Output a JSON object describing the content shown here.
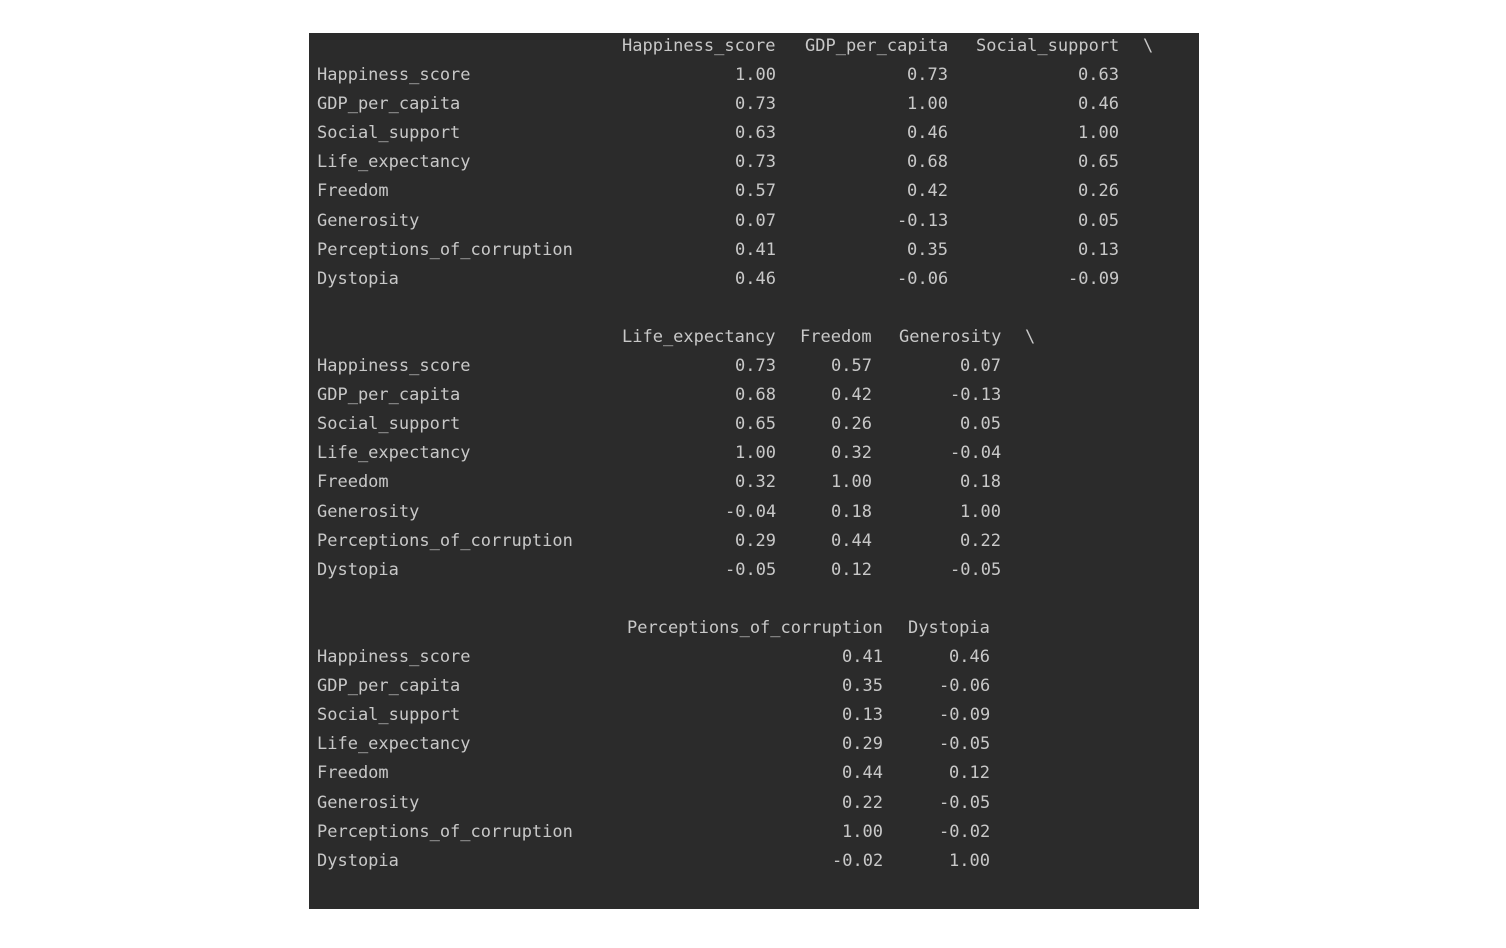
{
  "tables": [
    {
      "columns": [
        "Happiness_score",
        "GDP_per_capita",
        "Social_support"
      ],
      "continuation": "\\",
      "rows": [
        {
          "label": "Happiness_score",
          "values": [
            "1.00",
            "0.73",
            "0.63"
          ]
        },
        {
          "label": "GDP_per_capita",
          "values": [
            "0.73",
            "1.00",
            "0.46"
          ]
        },
        {
          "label": "Social_support",
          "values": [
            "0.63",
            "0.46",
            "1.00"
          ]
        },
        {
          "label": "Life_expectancy",
          "values": [
            "0.73",
            "0.68",
            "0.65"
          ]
        },
        {
          "label": "Freedom",
          "values": [
            "0.57",
            "0.42",
            "0.26"
          ]
        },
        {
          "label": "Generosity",
          "values": [
            "0.07",
            "-0.13",
            "0.05"
          ]
        },
        {
          "label": "Perceptions_of_corruption",
          "values": [
            "0.41",
            "0.35",
            "0.13"
          ]
        },
        {
          "label": "Dystopia",
          "values": [
            "0.46",
            "-0.06",
            "-0.09"
          ]
        }
      ]
    },
    {
      "columns": [
        "Life_expectancy",
        "Freedom",
        "Generosity"
      ],
      "continuation": "\\",
      "rows": [
        {
          "label": "Happiness_score",
          "values": [
            "0.73",
            "0.57",
            "0.07"
          ]
        },
        {
          "label": "GDP_per_capita",
          "values": [
            "0.68",
            "0.42",
            "-0.13"
          ]
        },
        {
          "label": "Social_support",
          "values": [
            "0.65",
            "0.26",
            "0.05"
          ]
        },
        {
          "label": "Life_expectancy",
          "values": [
            "1.00",
            "0.32",
            "-0.04"
          ]
        },
        {
          "label": "Freedom",
          "values": [
            "0.32",
            "1.00",
            "0.18"
          ]
        },
        {
          "label": "Generosity",
          "values": [
            "-0.04",
            "0.18",
            "1.00"
          ]
        },
        {
          "label": "Perceptions_of_corruption",
          "values": [
            "0.29",
            "0.44",
            "0.22"
          ]
        },
        {
          "label": "Dystopia",
          "values": [
            "-0.05",
            "0.12",
            "-0.05"
          ]
        }
      ]
    },
    {
      "columns": [
        "Perceptions_of_corruption",
        "Dystopia"
      ],
      "continuation": "",
      "rows": [
        {
          "label": "Happiness_score",
          "values": [
            "0.41",
            "0.46"
          ]
        },
        {
          "label": "GDP_per_capita",
          "values": [
            "0.35",
            "-0.06"
          ]
        },
        {
          "label": "Social_support",
          "values": [
            "0.13",
            "-0.09"
          ]
        },
        {
          "label": "Life_expectancy",
          "values": [
            "0.29",
            "-0.05"
          ]
        },
        {
          "label": "Freedom",
          "values": [
            "0.44",
            "0.12"
          ]
        },
        {
          "label": "Generosity",
          "values": [
            "0.22",
            "-0.05"
          ]
        },
        {
          "label": "Perceptions_of_corruption",
          "values": [
            "1.00",
            "-0.02"
          ]
        },
        {
          "label": "Dystopia",
          "values": [
            "-0.02",
            "1.00"
          ]
        }
      ]
    }
  ],
  "colors": {
    "background": "#2b2b2b",
    "text": "#c8c8c8"
  }
}
